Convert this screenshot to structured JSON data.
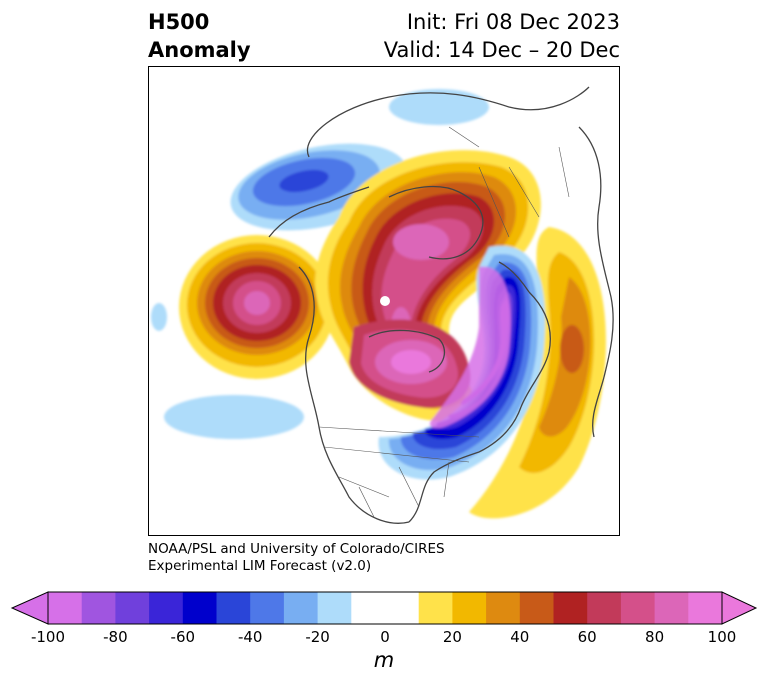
{
  "header": {
    "title_line1": "H500",
    "title_line2": "Anomaly",
    "init_text": "Init: Fri 08 Dec 2023",
    "valid_text": "Valid: 14 Dec – 20 Dec"
  },
  "credit": {
    "line1": "NOAA/PSL and University of Colorado/CIRES",
    "line2": "Experimental LIM Forecast (v2.0)"
  },
  "colorbar": {
    "unit": "m",
    "ticks": [
      "-100",
      "-80",
      "-60",
      "-40",
      "-20",
      "0",
      "20",
      "40",
      "60",
      "80",
      "100"
    ],
    "colors": [
      "#d670e8",
      "#a055e0",
      "#7040dc",
      "#3a25d8",
      "#0000cc",
      "#2a45d8",
      "#4e78e8",
      "#78aef2",
      "#aedcfa",
      "#ffffff",
      "#ffffff",
      "#ffe24a",
      "#f2b800",
      "#de8a10",
      "#c85a18",
      "#b02222",
      "#c23a5a",
      "#d4508a",
      "#dc66b8",
      "#ea78dc"
    ],
    "under_color": "#d670e8",
    "over_color": "#ea78dc"
  },
  "map": {
    "projection": "north-polar-stereographic",
    "field": "500 hPa geopotential height anomaly"
  }
}
